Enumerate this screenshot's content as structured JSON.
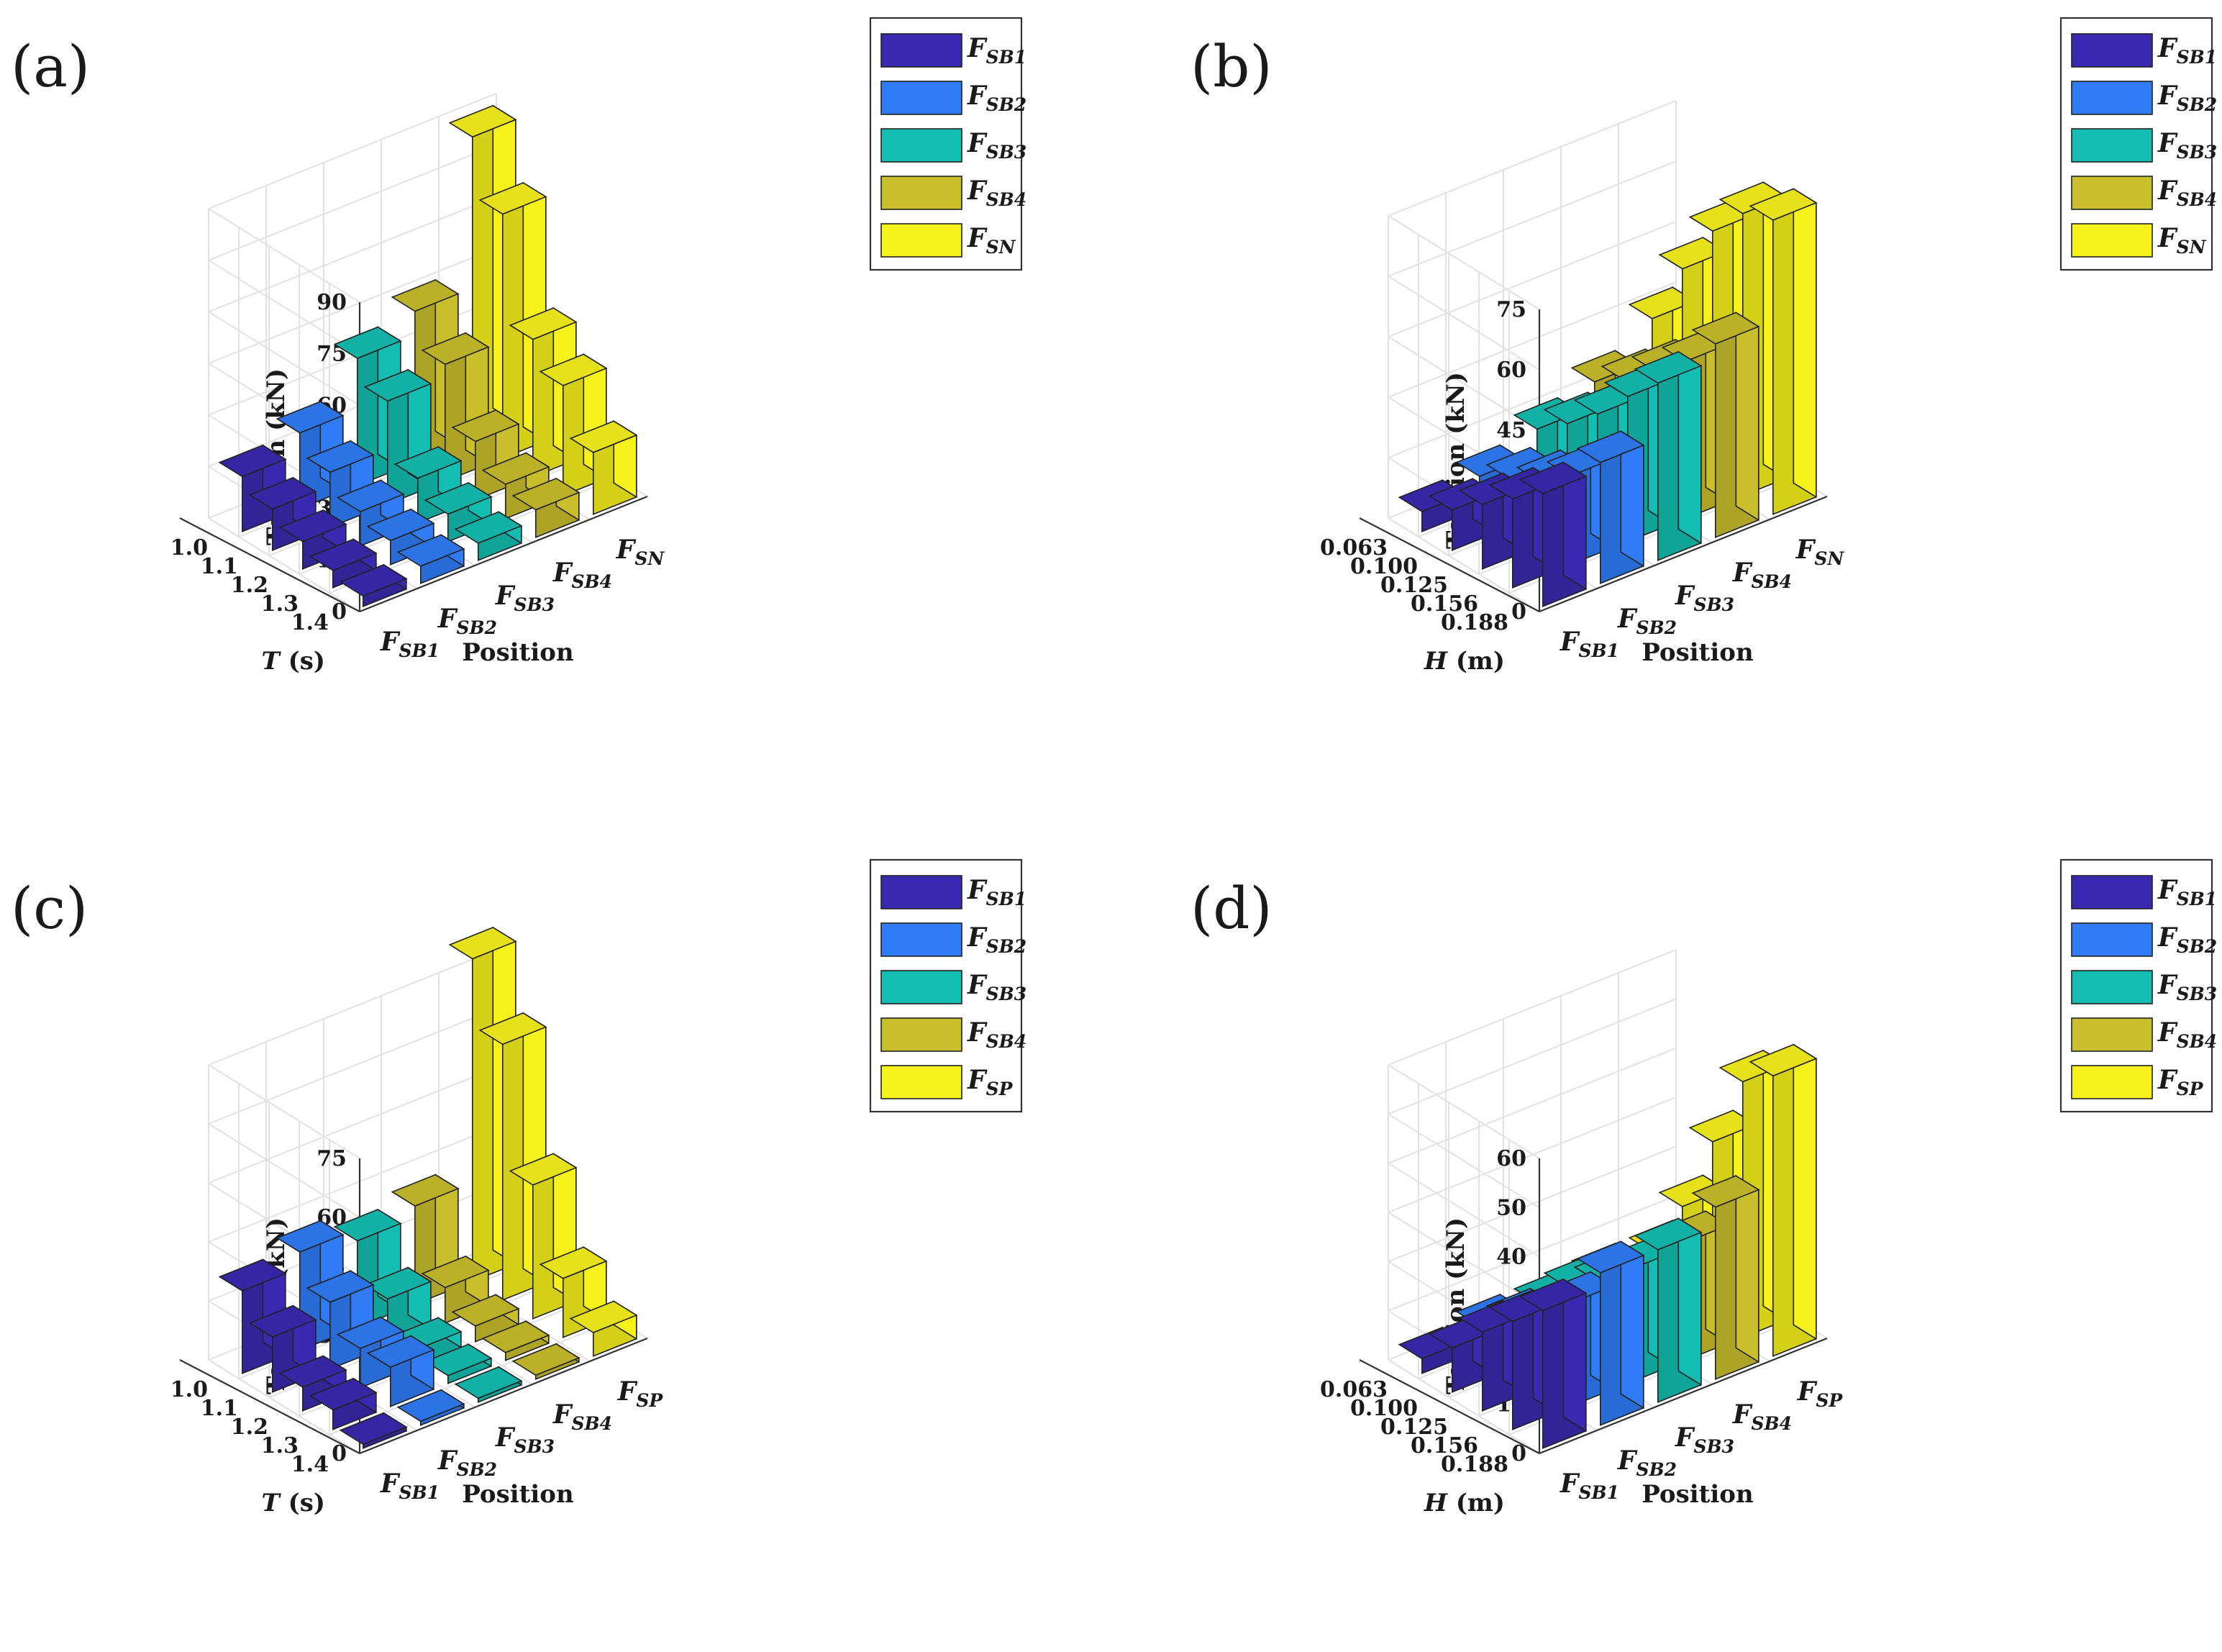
{
  "colors": {
    "FSB1": "#3a29b0",
    "FSB2": "#2f7cf6",
    "FSB3": "#13bdb1",
    "FSB4": "#c9be2c",
    "FSN": "#f7f21c",
    "FSP": "#f7f21c"
  },
  "chart_data": [
    {
      "type": "bar3d",
      "panel_label": "(a)",
      "zlabel": "Tension (kN)",
      "ylabel_var": "T",
      "ylabel_unit": " (s)",
      "xlabel": "Position",
      "z_ticks": [
        "0",
        "15",
        "30",
        "45",
        "60",
        "75",
        "90"
      ],
      "zlim": [
        0,
        90
      ],
      "row_ticks": [
        "1.0",
        "1.1",
        "1.2",
        "1.3",
        "1.4"
      ],
      "position_ticks": [
        {
          "main": "F",
          "sub": "SB1"
        },
        {
          "main": "F",
          "sub": "SB2"
        },
        {
          "main": "F",
          "sub": "SB3"
        },
        {
          "main": "F",
          "sub": "SB4"
        },
        {
          "main": "F",
          "sub": "SN"
        }
      ],
      "legend": [
        {
          "main": "F",
          "sub": "SB1",
          "color_key": "FSB1"
        },
        {
          "main": "F",
          "sub": "SB2",
          "color_key": "FSB2"
        },
        {
          "main": "F",
          "sub": "SB3",
          "color_key": "FSB3"
        },
        {
          "main": "F",
          "sub": "SB4",
          "color_key": "FSB4"
        },
        {
          "main": "F",
          "sub": "SN",
          "color_key": "FSN"
        }
      ],
      "series": [
        {
          "name": "F_SB1",
          "color_key": "FSB1",
          "values": [
            16,
            12,
            8,
            5,
            3
          ]
        },
        {
          "name": "F_SB2",
          "color_key": "FSB2",
          "values": [
            22,
            16,
            10,
            7,
            5
          ]
        },
        {
          "name": "F_SB3",
          "color_key": "FSB3",
          "values": [
            37,
            30,
            13,
            8,
            5
          ]
        },
        {
          "name": "F_SB4",
          "color_key": "FSB4",
          "values": [
            44,
            34,
            17,
            10,
            8
          ]
        },
        {
          "name": "F_SN",
          "color_key": "FSN",
          "values": [
            88,
            71,
            40,
            32,
            18
          ]
        }
      ]
    },
    {
      "type": "bar3d",
      "panel_label": "(b)",
      "zlabel": "Tension (kN)",
      "ylabel_var": "H",
      "ylabel_unit": " (m)",
      "xlabel": "Position",
      "z_ticks": [
        "0",
        "15",
        "30",
        "45",
        "60",
        "75"
      ],
      "zlim": [
        0,
        75
      ],
      "row_ticks": [
        "0.063",
        "0.100",
        "0.125",
        "0.156",
        "0.188"
      ],
      "position_ticks": [
        {
          "main": "F",
          "sub": "SB1"
        },
        {
          "main": "F",
          "sub": "SB2"
        },
        {
          "main": "F",
          "sub": "SB3"
        },
        {
          "main": "F",
          "sub": "SB4"
        },
        {
          "main": "F",
          "sub": "SN"
        }
      ],
      "legend": [
        {
          "main": "F",
          "sub": "SB1",
          "color_key": "FSB1"
        },
        {
          "main": "F",
          "sub": "SB2",
          "color_key": "FSB2"
        },
        {
          "main": "F",
          "sub": "SB3",
          "color_key": "FSB3"
        },
        {
          "main": "F",
          "sub": "SB4",
          "color_key": "FSB4"
        },
        {
          "main": "F",
          "sub": "SN",
          "color_key": "FSN"
        }
      ],
      "series": [
        {
          "name": "F_SB1",
          "color_key": "FSB1",
          "values": [
            5,
            10,
            16,
            22,
            28
          ]
        },
        {
          "name": "F_SB2",
          "color_key": "FSB2",
          "values": [
            8,
            12,
            16,
            22,
            30
          ]
        },
        {
          "name": "F_SB3",
          "color_key": "FSB3",
          "values": [
            14,
            20,
            27,
            36,
            44
          ]
        },
        {
          "name": "F_SB4",
          "color_key": "FSB4",
          "values": [
            20,
            25,
            32,
            39,
            48
          ]
        },
        {
          "name": "F_SN",
          "color_key": "FSN",
          "values": [
            30,
            47,
            61,
            70,
            73
          ]
        }
      ]
    },
    {
      "type": "bar3d",
      "panel_label": "(c)",
      "zlabel": "Tension (kN)",
      "ylabel_var": "T",
      "ylabel_unit": " (s)",
      "xlabel": "Position",
      "z_ticks": [
        "0",
        "15",
        "30",
        "45",
        "60",
        "75"
      ],
      "zlim": [
        0,
        75
      ],
      "row_ticks": [
        "1.0",
        "1.1",
        "1.2",
        "1.3",
        "1.4"
      ],
      "position_ticks": [
        {
          "main": "F",
          "sub": "SB1"
        },
        {
          "main": "F",
          "sub": "SB2"
        },
        {
          "main": "F",
          "sub": "SB3"
        },
        {
          "main": "F",
          "sub": "SB4"
        },
        {
          "main": "F",
          "sub": "SP"
        }
      ],
      "legend": [
        {
          "main": "F",
          "sub": "SB1",
          "color_key": "FSB1"
        },
        {
          "main": "F",
          "sub": "SB2",
          "color_key": "FSB2"
        },
        {
          "main": "F",
          "sub": "SB3",
          "color_key": "FSB3"
        },
        {
          "main": "F",
          "sub": "SB4",
          "color_key": "FSB4"
        },
        {
          "main": "F",
          "sub": "SP",
          "color_key": "FSP"
        }
      ],
      "series": [
        {
          "name": "F_SB1",
          "color_key": "FSB1",
          "values": [
            21,
            14,
            6,
            5,
            1
          ]
        },
        {
          "name": "F_SB2",
          "color_key": "FSB2",
          "values": [
            25,
            17,
            10,
            10,
            1
          ]
        },
        {
          "name": "F_SB3",
          "color_key": "FSB3",
          "values": [
            22,
            12,
            4,
            2,
            1
          ]
        },
        {
          "name": "F_SB4",
          "color_key": "FSB4",
          "values": [
            25,
            9,
            4,
            2,
            1
          ]
        },
        {
          "name": "F_SP",
          "color_key": "FSP",
          "values": [
            82,
            65,
            34,
            15,
            6
          ]
        }
      ]
    },
    {
      "type": "bar3d",
      "panel_label": "(d)",
      "zlabel": "Tension (kN)",
      "ylabel_var": "H",
      "ylabel_unit": " (m)",
      "xlabel": "Position",
      "z_ticks": [
        "0",
        "10",
        "20",
        "30",
        "40",
        "50",
        "60"
      ],
      "zlim": [
        0,
        60
      ],
      "row_ticks": [
        "0.063",
        "0.100",
        "0.125",
        "0.156",
        "0.188"
      ],
      "position_ticks": [
        {
          "main": "F",
          "sub": "SB1"
        },
        {
          "main": "F",
          "sub": "SB2"
        },
        {
          "main": "F",
          "sub": "SB3"
        },
        {
          "main": "F",
          "sub": "SB4"
        },
        {
          "main": "F",
          "sub": "SP"
        }
      ],
      "legend": [
        {
          "main": "F",
          "sub": "SB1",
          "color_key": "FSB1"
        },
        {
          "main": "F",
          "sub": "SB2",
          "color_key": "FSB2"
        },
        {
          "main": "F",
          "sub": "SB3",
          "color_key": "FSB3"
        },
        {
          "main": "F",
          "sub": "SB4",
          "color_key": "FSB4"
        },
        {
          "main": "F",
          "sub": "SP",
          "color_key": "FSP"
        }
      ],
      "series": [
        {
          "name": "F_SB1",
          "color_key": "FSB1",
          "values": [
            3,
            9,
            16,
            22,
            28
          ]
        },
        {
          "name": "F_SB2",
          "color_key": "FSB2",
          "values": [
            5,
            10,
            15,
            21,
            31
          ]
        },
        {
          "name": "F_SB3",
          "color_key": "FSB3",
          "values": [
            5,
            12,
            17,
            23,
            31
          ]
        },
        {
          "name": "F_SB4",
          "color_key": "FSB4",
          "values": [
            6,
            9,
            15,
            24,
            35
          ]
        },
        {
          "name": "F_SP",
          "color_key": "FSP",
          "values": [
            6,
            19,
            36,
            52,
            57
          ]
        }
      ]
    }
  ]
}
